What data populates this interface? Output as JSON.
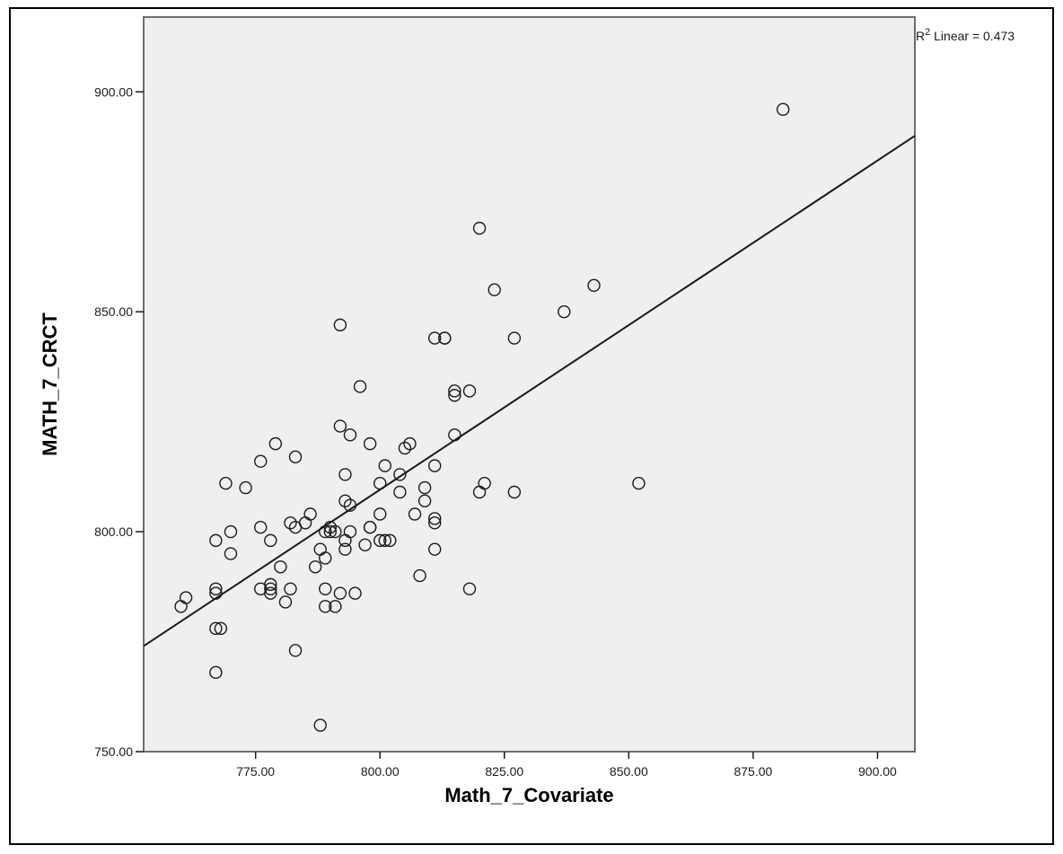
{
  "chart_data": {
    "type": "scatter",
    "title": "",
    "xlabel": "Math_7_Covariate",
    "ylabel": "MATH_7_CRCT",
    "xlim": [
      752.5,
      907.5
    ],
    "ylim": [
      750,
      917
    ],
    "x_ticks": [
      "775.00",
      "800.00",
      "825.00",
      "850.00",
      "875.00",
      "900.00"
    ],
    "y_ticks": [
      "750.00",
      "800.00",
      "850.00",
      "900.00"
    ],
    "grid": false,
    "fit_line": {
      "type": "linear",
      "label": "R² Linear = 0.473",
      "label_base": "R",
      "label_sup": "2",
      "label_rest": " Linear = 0.473",
      "points": [
        [
          752.5,
          774
        ],
        [
          907.5,
          890
        ]
      ]
    },
    "x": [
      760,
      761,
      767,
      767,
      767,
      767,
      767,
      768,
      769,
      770,
      770,
      773,
      776,
      776,
      776,
      778,
      778,
      778,
      778,
      779,
      780,
      781,
      782,
      782,
      783,
      783,
      783,
      785,
      786,
      787,
      788,
      788,
      789,
      789,
      789,
      789,
      790,
      790,
      791,
      791,
      792,
      792,
      792,
      793,
      793,
      793,
      793,
      794,
      794,
      794,
      795,
      796,
      797,
      798,
      798,
      798,
      800,
      800,
      800,
      801,
      801,
      802,
      804,
      804,
      805,
      806,
      807,
      808,
      809,
      809,
      811,
      811,
      811,
      811,
      811,
      813,
      813,
      815,
      815,
      815,
      818,
      818,
      820,
      820,
      821,
      823,
      827,
      827,
      837,
      843,
      852,
      881
    ],
    "y": [
      783,
      785,
      778,
      768,
      786,
      787,
      798,
      778,
      811,
      795,
      800,
      810,
      816,
      787,
      801,
      787,
      788,
      786,
      798,
      820,
      792,
      784,
      787,
      802,
      773,
      801,
      817,
      802,
      804,
      792,
      756,
      796,
      783,
      787,
      794,
      800,
      800,
      801,
      783,
      800,
      786,
      824,
      847,
      813,
      807,
      798,
      796,
      806,
      800,
      822,
      786,
      833,
      797,
      801,
      801,
      820,
      811,
      804,
      798,
      798,
      815,
      798,
      809,
      813,
      819,
      820,
      804,
      790,
      810,
      807,
      815,
      796,
      802,
      803,
      844,
      844,
      844,
      832,
      831,
      822,
      832,
      787,
      869,
      809,
      811,
      855,
      844,
      809,
      850,
      856,
      811,
      896
    ]
  }
}
